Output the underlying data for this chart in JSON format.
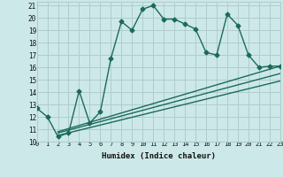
{
  "xlabel": "Humidex (Indice chaleur)",
  "bg_color": "#cde8e8",
  "grid_color": "#b0cccc",
  "line_color": "#1a6b5a",
  "xlim": [
    0,
    23
  ],
  "ylim": [
    10,
    21.3
  ],
  "xticks": [
    0,
    1,
    2,
    3,
    4,
    5,
    6,
    7,
    8,
    9,
    10,
    11,
    12,
    13,
    14,
    15,
    16,
    17,
    18,
    19,
    20,
    21,
    22,
    23
  ],
  "yticks": [
    10,
    11,
    12,
    13,
    14,
    15,
    16,
    17,
    18,
    19,
    20,
    21
  ],
  "line1_x": [
    0,
    1,
    2,
    3,
    4,
    5,
    6,
    7,
    8,
    9,
    10,
    11,
    12,
    13,
    14,
    15,
    16,
    17,
    18,
    19,
    20,
    21,
    22,
    23
  ],
  "line1_y": [
    12.7,
    12.0,
    10.4,
    10.7,
    14.1,
    11.5,
    12.4,
    16.7,
    19.7,
    19.0,
    20.7,
    21.0,
    19.9,
    19.9,
    19.5,
    19.1,
    17.2,
    17.0,
    20.3,
    19.4,
    17.0,
    16.0,
    16.1,
    16.1
  ],
  "line2_x": [
    2,
    23
  ],
  "line2_y": [
    10.8,
    16.1
  ],
  "line3_x": [
    2,
    23
  ],
  "line3_y": [
    10.7,
    15.5
  ],
  "line4_x": [
    2,
    23
  ],
  "line4_y": [
    10.5,
    14.9
  ],
  "markersize": 2.5,
  "linewidth": 1.0
}
